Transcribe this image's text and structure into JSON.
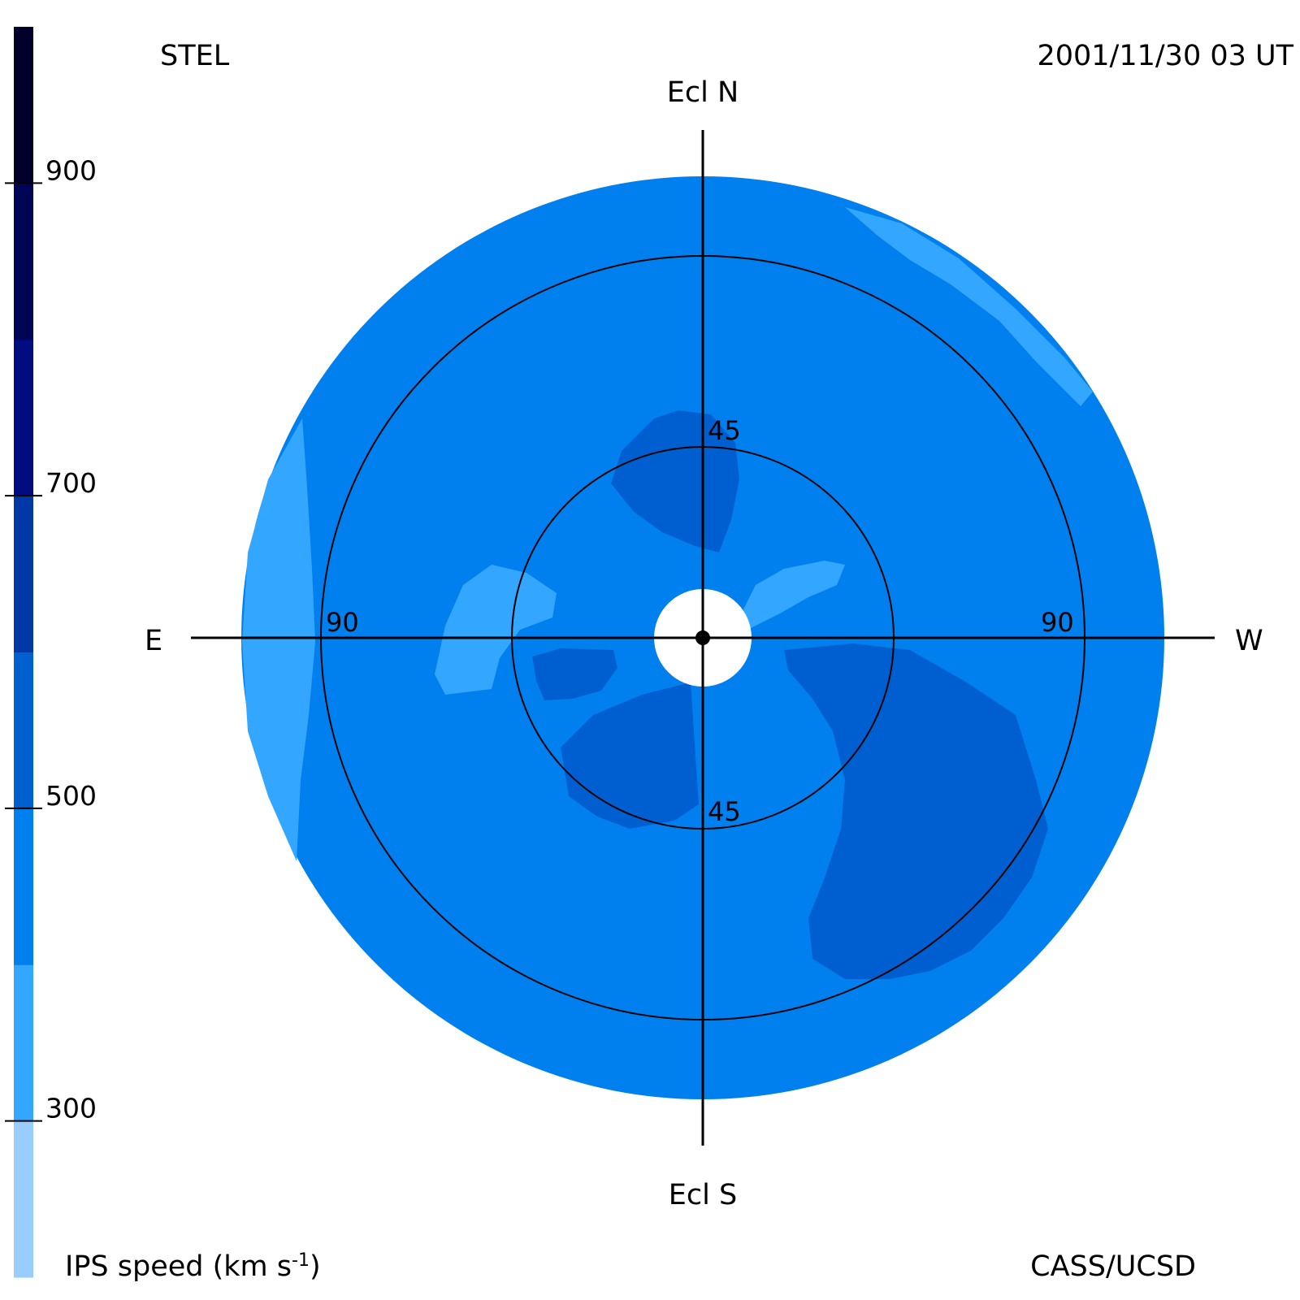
{
  "header": {
    "source_label": "STEL",
    "timestamp": "2001/11/30 03 UT"
  },
  "footer": {
    "colorbar_title_prefix": "IPS speed (km s",
    "colorbar_title_exp": "-1",
    "colorbar_title_suffix": ")",
    "credit": "CASS/UCSD"
  },
  "compass": {
    "north": "Ecl N",
    "south": "Ecl S",
    "east": "E",
    "west": "W"
  },
  "rings": {
    "inner_label_top": "45",
    "inner_label_bottom": "45",
    "outer_label_left": "90",
    "outer_label_right": "90"
  },
  "colorbar": {
    "ticks": [
      "900",
      "700",
      "500",
      "300"
    ],
    "bands": [
      {
        "range": "200-300",
        "color": "#99ccff"
      },
      {
        "range": "300-400",
        "color": "#33a6ff"
      },
      {
        "range": "400-500",
        "color": "#0080ee"
      },
      {
        "range": "500-600",
        "color": "#0060d0"
      },
      {
        "range": "600-700",
        "color": "#0038a8"
      },
      {
        "range": "700-800",
        "color": "#000c80"
      },
      {
        "range": "800-900",
        "color": "#000455"
      },
      {
        "range": "900-1000",
        "color": "#00002a"
      }
    ]
  },
  "palette": {
    "light": "#33a6ff",
    "base": "#0080ee",
    "dark": "#005fd0",
    "sun": "#ffffff",
    "ink": "#000000"
  }
}
